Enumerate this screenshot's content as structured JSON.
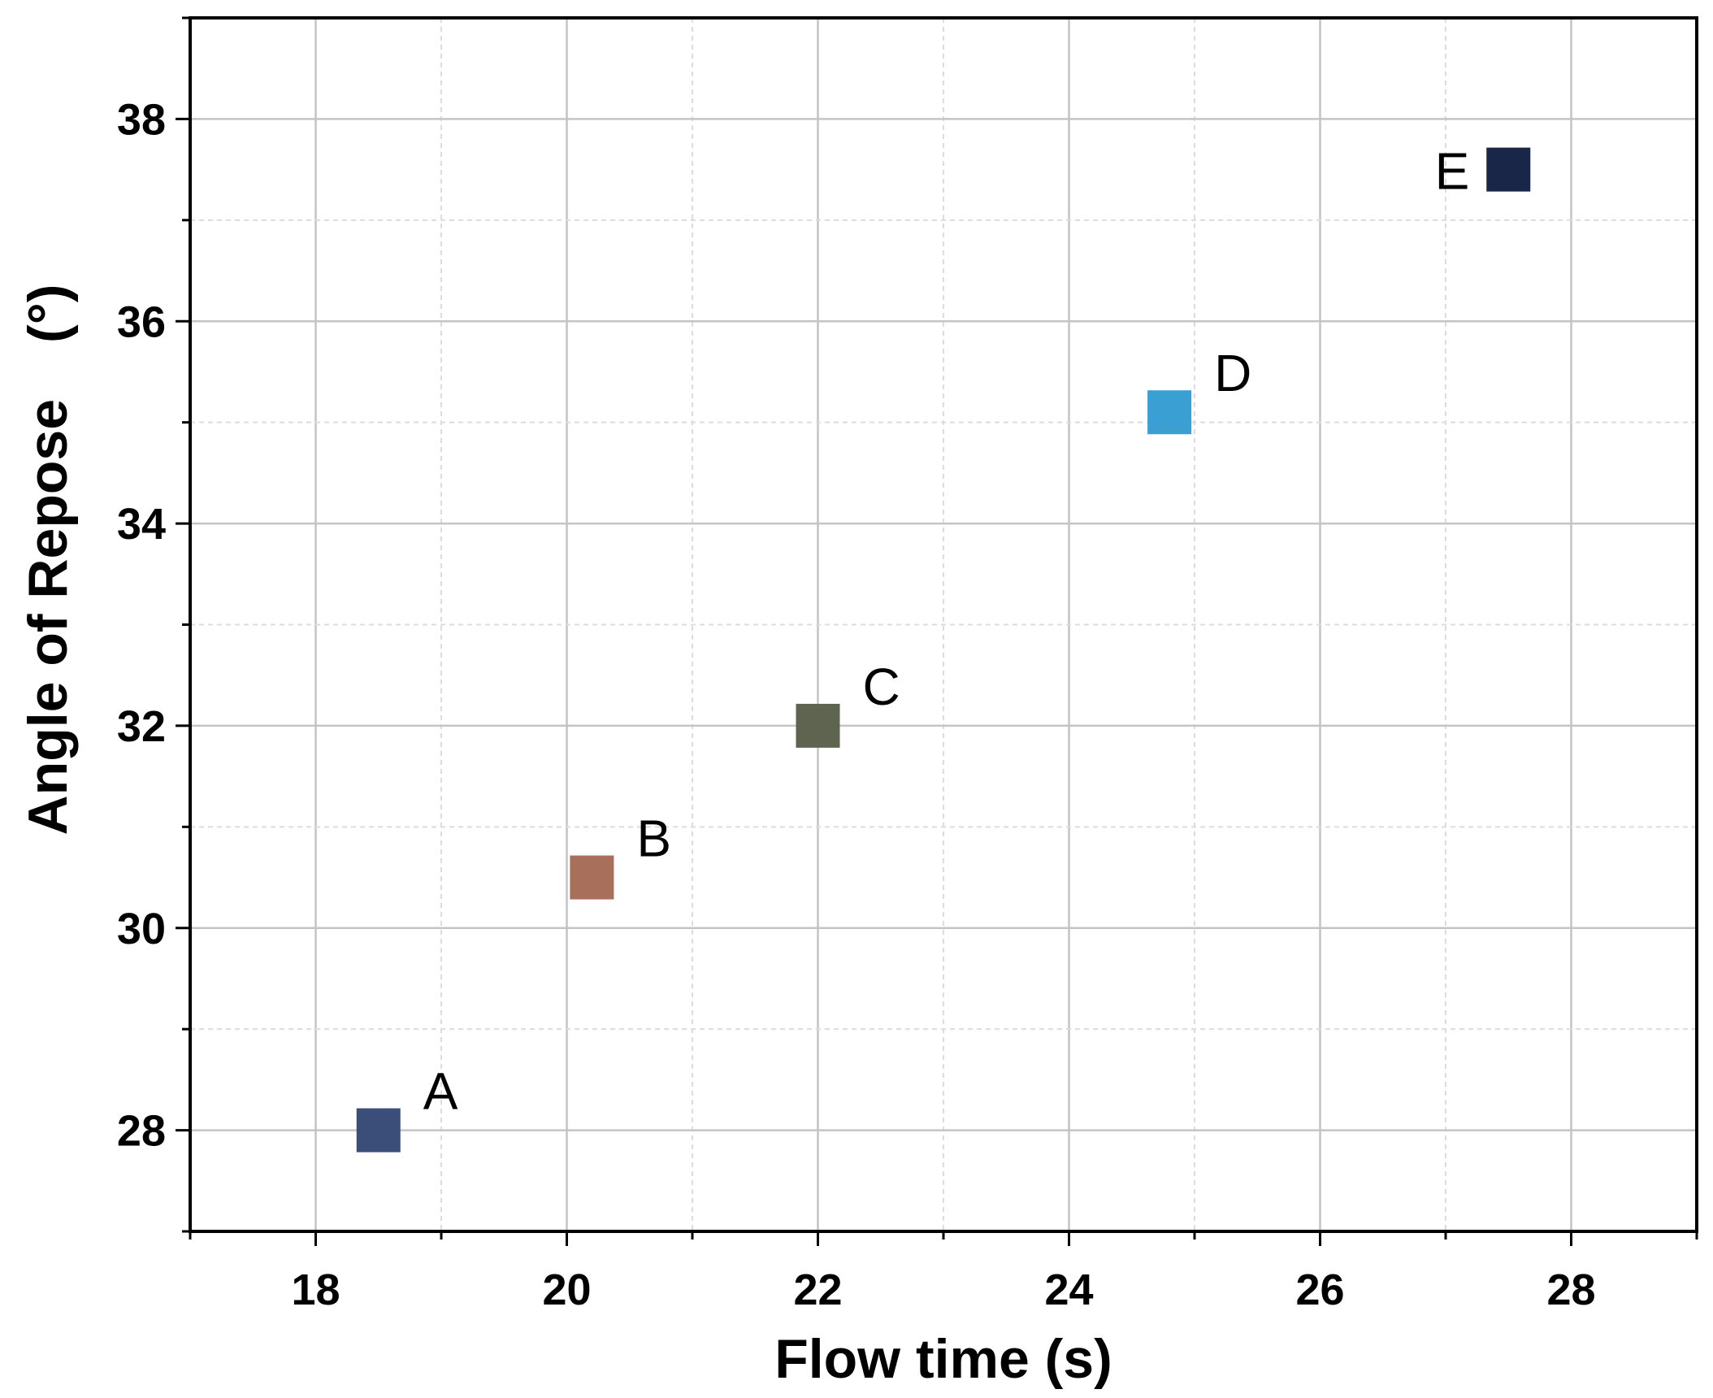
{
  "chart_data": {
    "type": "scatter",
    "xlabel": "Flow time (s)",
    "ylabel_main": "Angle of Repose",
    "ylabel_unit": "(°)",
    "xlim": [
      17,
      29
    ],
    "ylim": [
      27,
      39
    ],
    "xticks": [
      18,
      20,
      22,
      24,
      26,
      28
    ],
    "yticks": [
      28,
      30,
      32,
      34,
      36,
      38
    ],
    "grid": true,
    "points": [
      {
        "label": "A",
        "x": 18.5,
        "y": 28.0,
        "color": "#3b4e7a"
      },
      {
        "label": "B",
        "x": 20.2,
        "y": 30.5,
        "color": "#a8705a"
      },
      {
        "label": "C",
        "x": 22.0,
        "y": 32.0,
        "color": "#5f6450"
      },
      {
        "label": "D",
        "x": 24.8,
        "y": 35.1,
        "color": "#3aa0d4"
      },
      {
        "label": "E",
        "x": 27.5,
        "y": 37.5,
        "color": "#1a2648"
      }
    ]
  }
}
